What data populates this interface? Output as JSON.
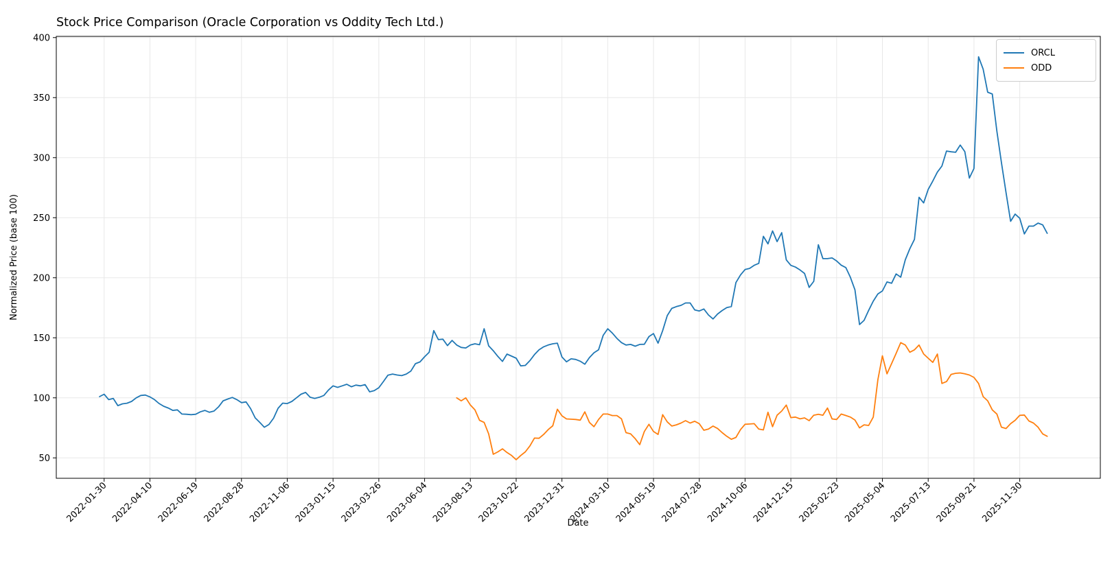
{
  "chart_data": {
    "type": "line",
    "title": "Stock Price Comparison (Oracle Corporation vs Oddity Tech Ltd.)",
    "xlabel": "Date",
    "ylabel": "Normalized Price (base 100)",
    "x_unit": "weekly index",
    "grid": true,
    "legend_position": "upper right",
    "y_ticks": [
      50,
      100,
      150,
      200,
      250,
      300,
      350,
      400
    ],
    "ylim": [
      33,
      401
    ],
    "xlim_index": [
      -9.45,
      218.6
    ],
    "x_tick_indices": [
      1,
      11,
      21,
      31,
      41,
      51,
      61,
      71,
      81,
      91,
      101,
      111,
      121,
      131,
      141,
      151,
      161,
      171,
      181,
      191,
      201
    ],
    "x_tick_labels": [
      "2022-01-30",
      "2022-04-10",
      "2022-06-19",
      "2022-08-28",
      "2022-11-06",
      "2023-01-15",
      "2023-03-26",
      "2023-06-04",
      "2023-08-13",
      "2023-10-22",
      "2023-12-31",
      "2024-03-10",
      "2024-05-19",
      "2024-07-28",
      "2024-10-06",
      "2024-12-15",
      "2025-02-23",
      "2025-05-04",
      "2025-07-13",
      "2025-09-21",
      "2025-11-30"
    ],
    "series": [
      {
        "name": "ORCL",
        "color": "#1f77b4",
        "start_index": 0,
        "values": [
          101,
          103,
          98.5,
          99.5,
          93.5,
          95,
          95.5,
          97,
          100,
          102,
          102.3,
          100.8,
          98.5,
          95.3,
          93,
          91.5,
          89.5,
          90,
          86.5,
          86.3,
          86,
          86.3,
          88.3,
          89.5,
          88,
          89,
          92.5,
          97.5,
          99,
          100.3,
          98.5,
          96,
          96.6,
          91,
          83.3,
          79.5,
          75.5,
          77.8,
          83,
          91.3,
          95.6,
          95.2,
          97,
          100,
          103,
          104.5,
          100.5,
          99.5,
          100.5,
          102,
          106.5,
          110,
          108.7,
          110,
          111.3,
          109.2,
          110.6,
          110,
          111,
          105,
          106,
          108.4,
          113.5,
          118.9,
          119.8,
          119,
          118.5,
          119.8,
          122.3,
          128.4,
          129.9,
          134.2,
          137.9,
          156,
          148.5,
          148.8,
          143.5,
          147.8,
          144,
          142,
          141.5,
          144,
          145,
          144.2,
          157.5,
          143.3,
          139.2,
          134.5,
          130.3,
          136.4,
          134.7,
          133,
          126.6,
          127,
          131,
          136,
          140,
          142.5,
          144,
          145,
          145.5,
          134,
          130,
          132.5,
          132,
          130.5,
          128,
          133.5,
          137.5,
          140,
          152,
          157.5,
          154,
          149.5,
          146,
          144,
          144.5,
          143,
          144.5,
          144.6,
          151,
          153.5,
          145.5,
          156,
          168.5,
          174.5,
          176,
          177,
          179,
          179,
          173.2,
          172.3,
          174,
          169,
          165.7,
          169.8,
          172.7,
          175.2,
          176,
          196,
          202.3,
          206.8,
          207.8,
          210.4,
          212,
          234.5,
          228.2,
          239,
          230.1,
          237.5,
          214.9,
          210.3,
          208.9,
          206.5,
          203.6,
          192,
          197,
          227.5,
          216,
          215.9,
          216.5,
          214,
          210.5,
          208.5,
          200.5,
          190,
          161,
          164.5,
          172.8,
          180.5,
          186.5,
          189,
          196.5,
          195.4,
          203.2,
          200.5,
          215,
          224.2,
          232,
          267,
          262.3,
          273.5,
          280.5,
          288,
          293,
          305.5,
          304.9,
          304.5,
          310.5,
          305,
          283,
          291,
          384,
          373.7,
          354.5,
          353,
          322,
          296,
          271,
          247,
          253,
          249.5,
          236.5,
          243,
          243,
          245.5,
          244,
          237
        ]
      },
      {
        "name": "ODD",
        "color": "#ff7f0e",
        "start_index": 78,
        "values": [
          100,
          97.5,
          100,
          94,
          90,
          81.3,
          79.5,
          70,
          53,
          55,
          57.5,
          54.5,
          52,
          48.5,
          52,
          55,
          60,
          66.5,
          66.3,
          69.5,
          73.5,
          76.7,
          90.5,
          85,
          82.4,
          82.2,
          82,
          81.4,
          88.3,
          79.5,
          76,
          82,
          86.5,
          86.5,
          85.2,
          85.2,
          82.5,
          71,
          70,
          66,
          61,
          72,
          78,
          72,
          69.5,
          86,
          80,
          76.5,
          77.5,
          79,
          81,
          79,
          80.5,
          78.5,
          73,
          74,
          76.5,
          74.5,
          71,
          68,
          65.5,
          67,
          73.5,
          78,
          78.2,
          78.5,
          74,
          73.3,
          88,
          76,
          85.5,
          89,
          94,
          83.5,
          84,
          82.5,
          83.3,
          81,
          85.5,
          86.3,
          85.5,
          91.5,
          82.4,
          82,
          86.5,
          85.3,
          84,
          81.5,
          75,
          77.5,
          77,
          84,
          115,
          135,
          120,
          128.5,
          137,
          146,
          144,
          138,
          140,
          144,
          136.5,
          133,
          129.5,
          136.5,
          112,
          113.5,
          119.5,
          120.4,
          120.7,
          120,
          119,
          117,
          112,
          101,
          97.5,
          90,
          86.5,
          75.6,
          74.4,
          78.5,
          81.3,
          85.4,
          85.7,
          80.7,
          79,
          75.5,
          70,
          68
        ]
      }
    ]
  },
  "legend": {
    "entries": [
      {
        "label": "ORCL",
        "color": "#1f77b4"
      },
      {
        "label": "ODD",
        "color": "#ff7f0e"
      }
    ]
  }
}
